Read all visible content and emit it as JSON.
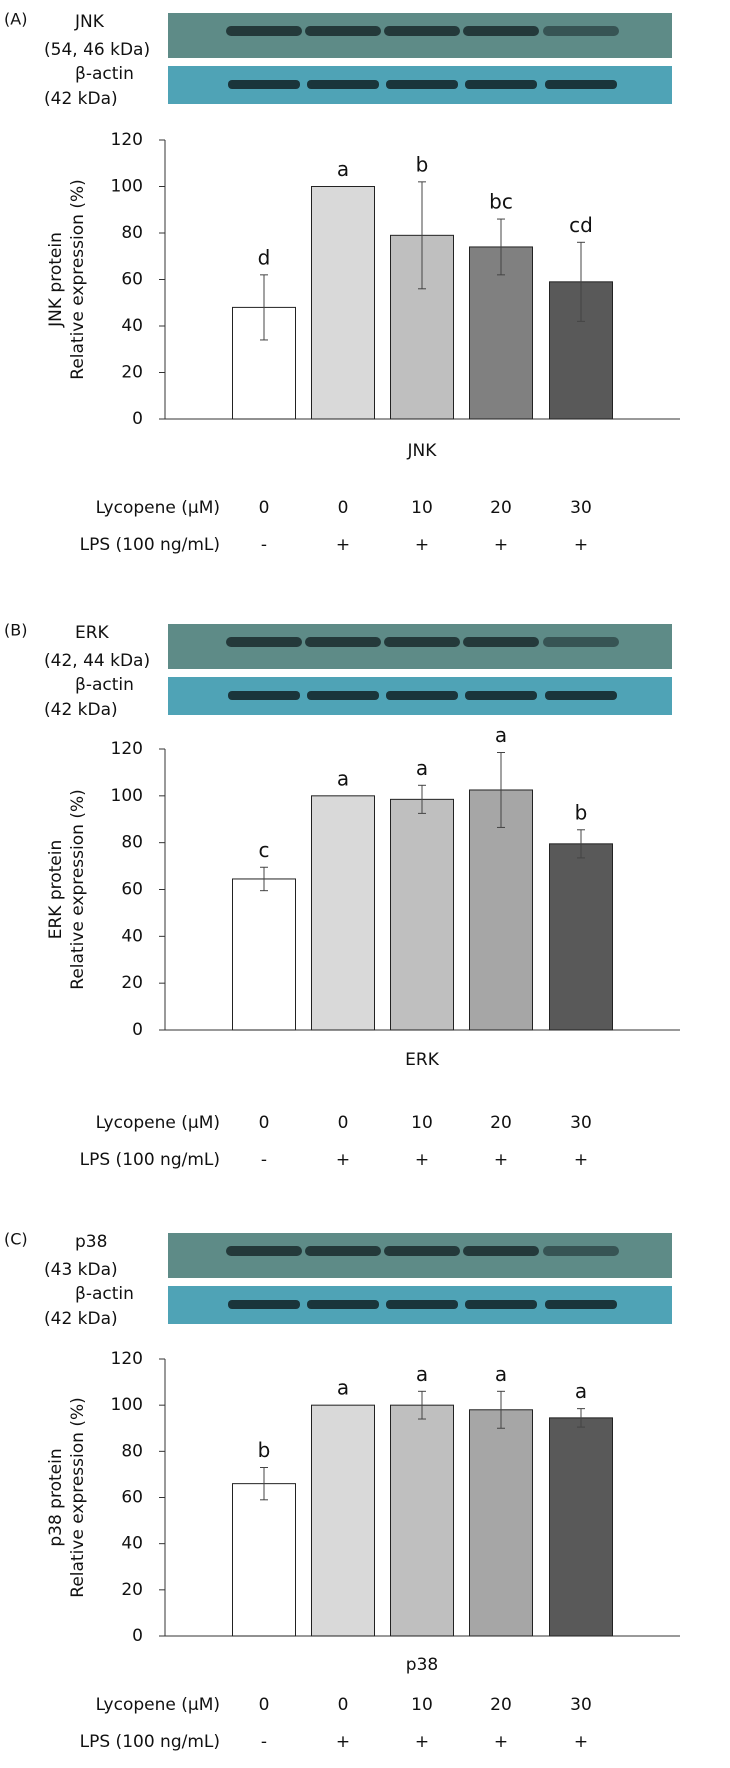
{
  "chart_data": [
    {
      "type": "bar",
      "panel": "(A)",
      "blot_labels": [
        "JNK",
        "(54, 46 kDa)",
        "β-actin",
        "(42 kDa)"
      ],
      "ylabel": [
        "JNK protein",
        "Relative expression (%)"
      ],
      "xlabel": "JNK",
      "values": [
        48,
        100,
        79,
        74,
        59
      ],
      "errors": [
        14,
        0,
        23,
        12,
        17
      ],
      "annotations": [
        "d",
        "a",
        "b",
        "bc",
        "cd"
      ],
      "colors": [
        "#ffffff",
        "#d9d9d9",
        "#bfbfbf",
        "#808080",
        "#595959"
      ],
      "treatments": [
        {
          "label": "Lycopene (μM)",
          "values": [
            "0",
            "0",
            "10",
            "20",
            "30"
          ]
        },
        {
          "label": "LPS (100 ng/mL)",
          "values": [
            "-",
            "+",
            "+",
            "+",
            "+"
          ]
        }
      ],
      "ylim": [
        0,
        120
      ],
      "yticks": [
        0,
        20,
        40,
        60,
        80,
        100,
        120
      ]
    },
    {
      "type": "bar",
      "panel": "(B)",
      "blot_labels": [
        "ERK",
        "(42, 44 kDa)",
        "β-actin",
        "(42 kDa)"
      ],
      "ylabel": [
        "ERK protein",
        "Relative expression (%)"
      ],
      "xlabel": "ERK",
      "values": [
        64.5,
        100,
        98.5,
        102.5,
        79.5
      ],
      "errors": [
        5,
        0,
        6,
        16,
        6
      ],
      "annotations": [
        "c",
        "a",
        "a",
        "a",
        "b"
      ],
      "colors": [
        "#ffffff",
        "#d9d9d9",
        "#bfbfbf",
        "#a6a6a6",
        "#595959"
      ],
      "treatments": [
        {
          "label": "Lycopene (μM)",
          "values": [
            "0",
            "0",
            "10",
            "20",
            "30"
          ]
        },
        {
          "label": "LPS (100 ng/mL)",
          "values": [
            "-",
            "+",
            "+",
            "+",
            "+"
          ]
        }
      ],
      "ylim": [
        0,
        120
      ],
      "yticks": [
        0,
        20,
        40,
        60,
        80,
        100,
        120
      ]
    },
    {
      "type": "bar",
      "panel": "(C)",
      "blot_labels": [
        "p38",
        "(43 kDa)",
        "β-actin",
        "(42 kDa)"
      ],
      "ylabel": [
        "p38 protein",
        "Relative expression (%)"
      ],
      "xlabel": "p38",
      "values": [
        66,
        100,
        100,
        98,
        94.5
      ],
      "errors": [
        7,
        0,
        6,
        8,
        4
      ],
      "annotations": [
        "b",
        "a",
        "a",
        "a",
        "a"
      ],
      "colors": [
        "#ffffff",
        "#d9d9d9",
        "#bfbfbf",
        "#a6a6a6",
        "#595959"
      ],
      "treatments": [
        {
          "label": "Lycopene (μM)",
          "values": [
            "0",
            "0",
            "10",
            "20",
            "30"
          ]
        },
        {
          "label": "LPS (100 ng/mL)",
          "values": [
            "-",
            "+",
            "+",
            "+",
            "+"
          ]
        }
      ],
      "ylim": [
        0,
        120
      ],
      "yticks": [
        0,
        20,
        40,
        60,
        80,
        100,
        120
      ]
    }
  ]
}
